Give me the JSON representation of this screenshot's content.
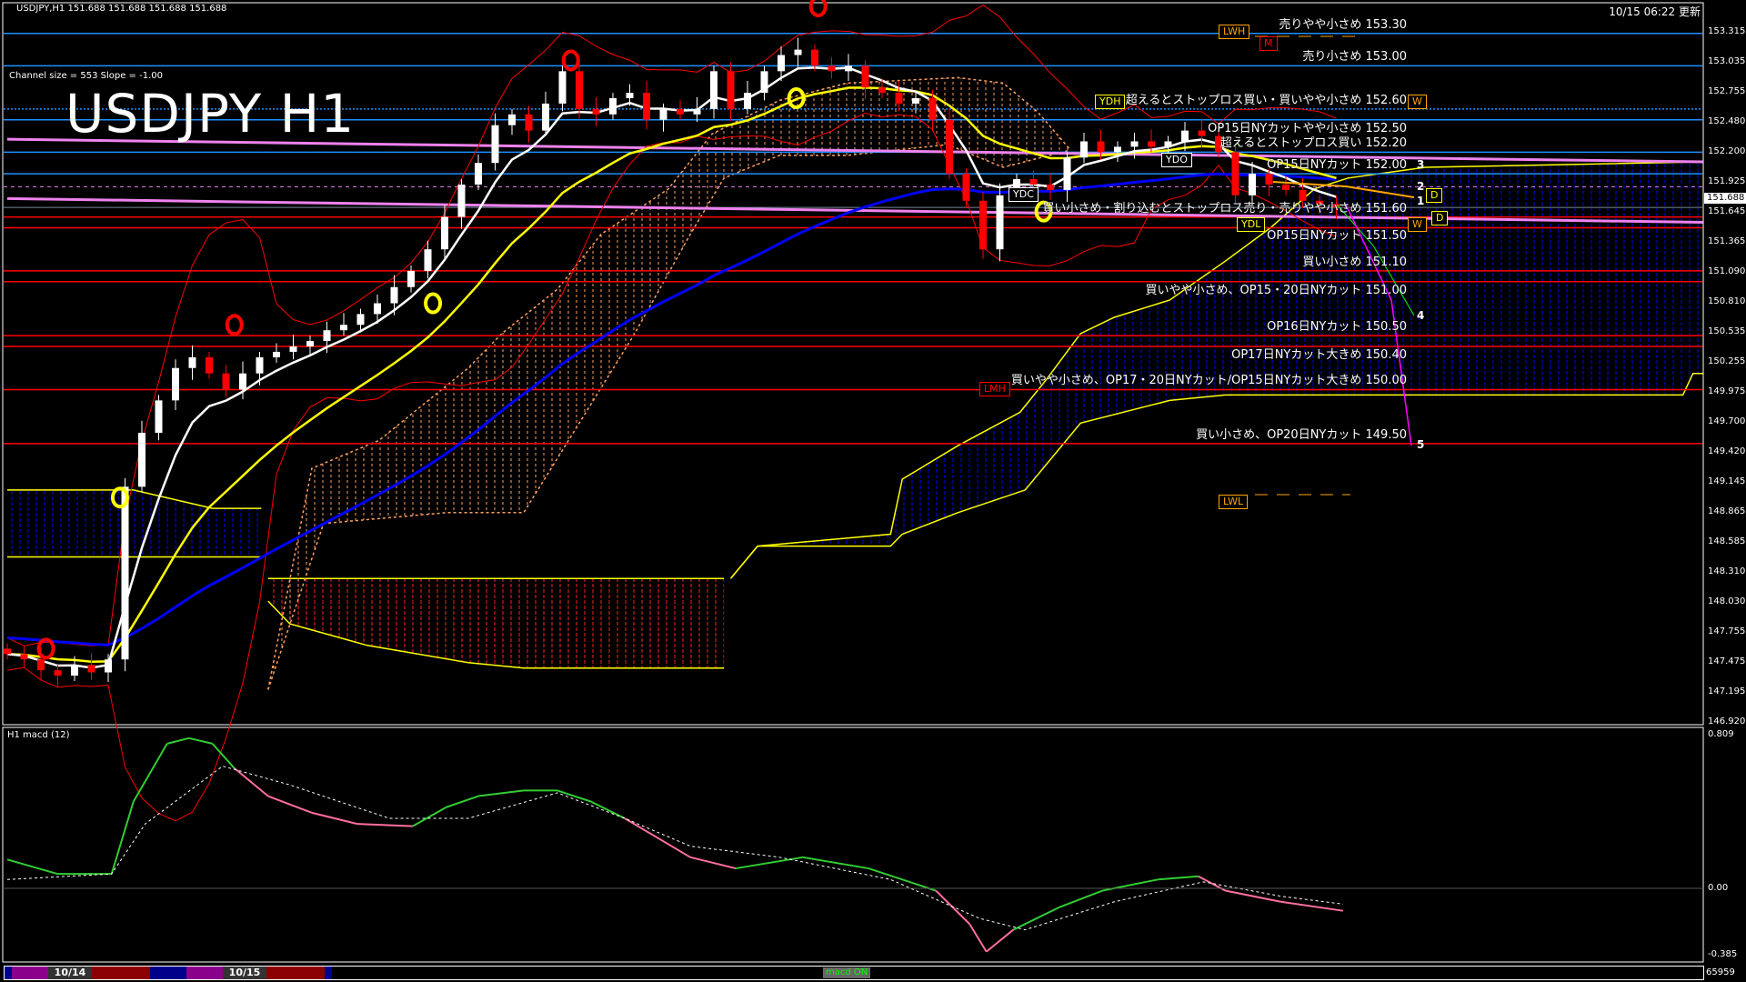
{
  "header": {
    "symbol_info": "USDJPY,H1  151.688 151.688 151.688 151.688",
    "updated": "10/15 06:22 更新",
    "channel_info": "Channel size = 553 Slope = -1.00",
    "big_title": "USDJPY H1"
  },
  "current_price": "151.688",
  "price_axis": [
    "153.315",
    "153.035",
    "152.755",
    "152.480",
    "152.200",
    "151.925",
    "151.645",
    "151.365",
    "151.090",
    "150.810",
    "150.535",
    "150.255",
    "149.975",
    "149.700",
    "149.420",
    "149.145",
    "148.865",
    "148.585",
    "148.310",
    "148.030",
    "147.755",
    "147.475",
    "147.195",
    "146.920"
  ],
  "levels": [
    {
      "price": 153.3,
      "label": "売りやや小さめ 153.30",
      "color": "#1e90ff"
    },
    {
      "price": 153.0,
      "label": "売り小さめ 153.00",
      "color": "#1e90ff"
    },
    {
      "price": 152.6,
      "label": "超えるとストップロス買い・買いやや小さめ 152.60",
      "color": "#1e90ff"
    },
    {
      "price": 152.5,
      "label": "OP15日NYカットやや小さめ 152.50",
      "color": "#1e90ff"
    },
    {
      "price": 152.2,
      "label": "超えるとストップロス買い 152.20",
      "color": "#1e90ff"
    },
    {
      "price": 152.0,
      "label": "OP15日NYカット 152.00",
      "color": "#1e90ff"
    },
    {
      "price": 151.6,
      "label": "買い小さめ・割り込むとストップロス売り・売りやや小さめ 151.60",
      "color": "#ff0000"
    },
    {
      "price": 151.5,
      "label": "OP15日NYカット 151.50",
      "color": "#ff0000"
    },
    {
      "price": 151.1,
      "label": "買い小さめ 151.10",
      "color": "#ff0000"
    },
    {
      "price": 151.0,
      "label": "買いやや小さめ、OP15・20日NYカット 151.00",
      "color": "#ff0000"
    },
    {
      "price": 150.5,
      "label": "OP16日NYカット 150.50",
      "color": "#ff0000"
    },
    {
      "price": 150.4,
      "label": "OP17日NYカット大きめ 150.40",
      "color": "#ff0000"
    },
    {
      "price": 150.0,
      "label": "買いやや小さめ、OP17・20日NYカット/OP15日NYカット大きめ 150.00",
      "color": "#ff0000"
    },
    {
      "price": 149.5,
      "label": "買い小さめ、OP20日NYカット 149.50",
      "color": "#ff0000"
    }
  ],
  "tags": [
    {
      "text": "LWH",
      "color": "#ffa500"
    },
    {
      "text": "M",
      "color": "#ff0000"
    },
    {
      "text": "YDH",
      "color": "#ffff00"
    },
    {
      "text": "W",
      "color": "#ffa500"
    },
    {
      "text": "YDO",
      "color": "#ffffff"
    },
    {
      "text": "YDC",
      "color": "#ffffff"
    },
    {
      "text": "YDL",
      "color": "#ffff00"
    },
    {
      "text": "W",
      "color": "#ffa500"
    },
    {
      "text": "D",
      "color": "#ffff00"
    },
    {
      "text": "D",
      "color": "#ffff00"
    },
    {
      "text": "LMH",
      "color": "#ff0000"
    },
    {
      "text": "LWL",
      "color": "#ffa500"
    }
  ],
  "wave_numbers": [
    "3",
    "2",
    "1",
    "4",
    "5"
  ],
  "chart_data": [
    {
      "type": "candlestick",
      "title": "USDJPY H1",
      "ylim": [
        146.92,
        153.315
      ],
      "closes": [
        147.55,
        147.5,
        147.4,
        147.35,
        147.45,
        147.38,
        147.5,
        149.1,
        149.6,
        149.9,
        150.2,
        150.3,
        150.15,
        150.0,
        150.15,
        150.3,
        150.35,
        150.4,
        150.45,
        150.55,
        150.6,
        150.7,
        150.8,
        150.95,
        151.1,
        151.3,
        151.6,
        151.9,
        152.1,
        152.45,
        152.55,
        152.4,
        152.65,
        152.95,
        152.6,
        152.55,
        152.7,
        152.75,
        152.5,
        152.6,
        152.55,
        152.6,
        152.95,
        152.6,
        152.75,
        152.95,
        153.1,
        153.15,
        153.0,
        152.95,
        153.0,
        152.8,
        152.75,
        152.65,
        152.7,
        152.5,
        152.0,
        151.75,
        151.3,
        151.8,
        151.95,
        151.9,
        151.85,
        152.15,
        152.3,
        152.2,
        152.25,
        152.3,
        152.25,
        152.3,
        152.4,
        152.35,
        152.2,
        151.8,
        152.0,
        151.9,
        151.85,
        151.75,
        151.72,
        151.688
      ],
      "ichimoku_clouds": [
        {
          "color": "#0000ff",
          "upper": [
            [
              0,
              149.07
            ],
            [
              7.5,
              149.07
            ],
            [
              12.2,
              148.9
            ],
            [
              15.1,
              148.9
            ]
          ],
          "lower": [
            [
              0,
              148.45
            ],
            [
              15.1,
              148.45
            ]
          ]
        },
        {
          "color": "#ff0000",
          "upper": [
            [
              15.5,
              148.25
            ],
            [
              42.6,
              148.25
            ]
          ],
          "lower": [
            [
              15.5,
              148.04
            ],
            [
              16.8,
              147.83
            ],
            [
              21.4,
              147.63
            ],
            [
              27.4,
              147.47
            ],
            [
              30.7,
              147.42
            ],
            [
              42.6,
              147.42
            ]
          ]
        },
        {
          "color": "#0000ff",
          "upper": [
            [
              43.0,
              148.25
            ],
            [
              44.6,
              148.55
            ],
            [
              52.5,
              148.66
            ],
            [
              53.2,
              149.17
            ],
            [
              56.5,
              149.48
            ],
            [
              60.2,
              149.79
            ],
            [
              61.8,
              150.1
            ],
            [
              63.8,
              150.52
            ],
            [
              65.8,
              150.67
            ],
            [
              69.1,
              150.83
            ],
            [
              72.4,
              151.19
            ],
            [
              75.1,
              151.5
            ],
            [
              77.7,
              151.86
            ],
            [
              79.7,
              151.96
            ],
            [
              84.3,
              152.06
            ],
            [
              100.8,
              152.11
            ]
          ],
          "lower": [
            [
              43.0,
              148.25
            ],
            [
              44.6,
              148.55
            ],
            [
              52.5,
              148.55
            ],
            [
              53.2,
              148.66
            ],
            [
              56.5,
              148.86
            ],
            [
              60.5,
              149.07
            ],
            [
              63.8,
              149.69
            ],
            [
              69.1,
              149.9
            ],
            [
              72.4,
              149.95
            ],
            [
              99.6,
              149.95
            ],
            [
              100.2,
              150.15
            ],
            [
              100.8,
              150.15
            ]
          ]
        },
        {
          "color": "#ffa060",
          "upper": [
            [
              15.5,
              147.22
            ],
            [
              18.1,
              149.27
            ],
            [
              22.1,
              149.53
            ],
            [
              27.4,
              150.2
            ],
            [
              29.4,
              150.52
            ],
            [
              32.7,
              150.93
            ],
            [
              35.3,
              151.44
            ],
            [
              39.3,
              151.86
            ],
            [
              41.9,
              152.37
            ],
            [
              45.9,
              152.68
            ],
            [
              49.9,
              152.84
            ],
            [
              56.5,
              152.89
            ],
            [
              59.2,
              152.84
            ],
            [
              61.2,
              152.58
            ],
            [
              63.2,
              152.22
            ]
          ],
          "lower": [
            [
              15.5,
              147.22
            ],
            [
              18.8,
              148.76
            ],
            [
              26.1,
              148.86
            ],
            [
              30.7,
              148.86
            ],
            [
              34.0,
              149.69
            ],
            [
              37.3,
              150.52
            ],
            [
              40.6,
              151.44
            ],
            [
              42.6,
              151.96
            ],
            [
              45.9,
              152.17
            ],
            [
              49.9,
              152.17
            ],
            [
              55.9,
              152.27
            ],
            [
              59.2,
              152.06
            ],
            [
              63.2,
              152.22
            ]
          ]
        }
      ],
      "trendlines": [
        {
          "color": "#ee82ee",
          "from": [
            0,
            152.32
          ],
          "to": [
            100.8,
            152.11
          ]
        },
        {
          "color": "#ee82ee",
          "from": [
            0,
            151.77
          ],
          "to": [
            100.8,
            151.55
          ]
        }
      ]
    },
    {
      "type": "line",
      "title": "H1  macd (12)",
      "ylim": [
        -0.385,
        0.809
      ],
      "zero_label": "0.00",
      "top_label": "0.809",
      "bottom_label": "-0.385",
      "series": [
        {
          "values": [
            [
              0,
              0.15
            ],
            [
              3,
              0.075
            ],
            [
              6.2,
              0.075
            ],
            [
              7.5,
              0.452
            ],
            [
              9.5,
              0.754
            ],
            [
              10.8,
              0.783
            ],
            [
              12.2,
              0.754
            ],
            [
              13.5,
              0.626
            ],
            [
              15.5,
              0.481
            ],
            [
              18.1,
              0.394
            ],
            [
              20.8,
              0.336
            ],
            [
              24.1,
              0.324
            ],
            [
              26.1,
              0.423
            ],
            [
              28.0,
              0.481
            ],
            [
              30.7,
              0.51
            ],
            [
              32.7,
              0.51
            ],
            [
              34.7,
              0.452
            ],
            [
              36.7,
              0.365
            ],
            [
              40.6,
              0.162
            ],
            [
              43.3,
              0.104
            ],
            [
              47.3,
              0.162
            ],
            [
              51.2,
              0.104
            ],
            [
              55.2,
              -0.012
            ],
            [
              57.2,
              -0.186
            ],
            [
              58.2,
              -0.33
            ],
            [
              59.8,
              -0.216
            ],
            [
              62.5,
              -0.1
            ],
            [
              65.1,
              -0.012
            ],
            [
              68.4,
              0.046
            ],
            [
              70.8,
              0.063
            ],
            [
              72.4,
              -0.012
            ],
            [
              75.7,
              -0.07
            ],
            [
              79.4,
              -0.117
            ]
          ]
        },
        {
          "values": [
            [
              0,
              0.046
            ],
            [
              6.2,
              0.075
            ],
            [
              8.2,
              0.336
            ],
            [
              12.8,
              0.637
            ],
            [
              16.8,
              0.539
            ],
            [
              22.7,
              0.365
            ],
            [
              27.4,
              0.365
            ],
            [
              32.7,
              0.498
            ],
            [
              36.7,
              0.365
            ],
            [
              40.6,
              0.22
            ],
            [
              45.9,
              0.162
            ],
            [
              52.5,
              0.046
            ],
            [
              57.8,
              -0.157
            ],
            [
              60.5,
              -0.216
            ],
            [
              65.8,
              -0.07
            ],
            [
              71.1,
              0.034
            ],
            [
              75.7,
              -0.041
            ],
            [
              79.4,
              -0.082
            ]
          ]
        }
      ]
    }
  ],
  "signals": [
    {
      "type": "sell",
      "bar": 33.5,
      "price": 153.05
    },
    {
      "type": "sell",
      "bar": 48.2,
      "price": 153.55
    },
    {
      "type": "sell",
      "bar": 13.5,
      "price": 150.6
    },
    {
      "type": "sell",
      "bar": 2.3,
      "price": 147.6
    },
    {
      "type": "buy",
      "bar": 6.7,
      "price": 149.0
    },
    {
      "type": "buy",
      "bar": 25.3,
      "price": 150.8
    },
    {
      "type": "buy",
      "bar": 46.9,
      "price": 152.7
    },
    {
      "type": "buy",
      "bar": 61.6,
      "price": 151.65
    }
  ],
  "bottom_bar": {
    "segments": [
      {
        "color": "#00008b",
        "text": ""
      },
      {
        "color": "#8b008b",
        "text": ""
      },
      {
        "color": "#333333",
        "text": "10/14"
      },
      {
        "color": "#8b0000",
        "text": ""
      },
      {
        "color": "#00008b",
        "text": ""
      },
      {
        "color": "#8b008b",
        "text": ""
      },
      {
        "color": "#333333",
        "text": "10/15"
      },
      {
        "color": "#8b0000",
        "text": ""
      },
      {
        "color": "#00008b",
        "text": ""
      }
    ],
    "macd_toggle": "macd ON",
    "volume": "65959"
  }
}
